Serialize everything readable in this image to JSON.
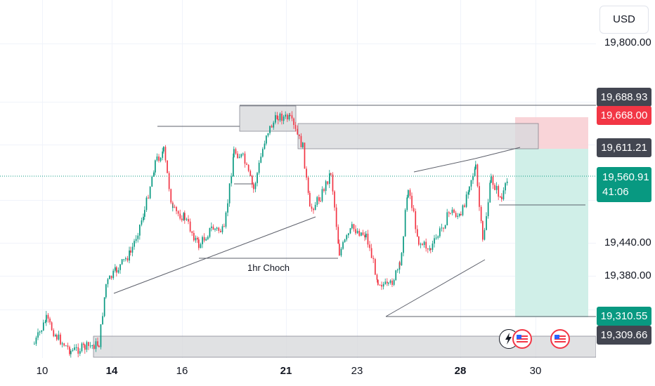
{
  "chart_data": {
    "type": "candlestick",
    "currency_button": "USD",
    "y_ticks": [
      "19,800.00",
      "19,440.00",
      "19,380.00"
    ],
    "x_ticks": [
      {
        "label": "10",
        "bold": false
      },
      {
        "label": "14",
        "bold": true
      },
      {
        "label": "16",
        "bold": false
      },
      {
        "label": "21",
        "bold": true
      },
      {
        "label": "23",
        "bold": false
      },
      {
        "label": "28",
        "bold": true
      },
      {
        "label": "30",
        "bold": false
      }
    ],
    "price_tags": [
      {
        "label": "19,688.93",
        "color": "#434651"
      },
      {
        "label": "19,668.00",
        "color": "#f23645"
      },
      {
        "label": "19,611.21",
        "color": "#434651"
      },
      {
        "label": "19,560.91",
        "sublabel": "41:06",
        "color": "#089981"
      },
      {
        "label": "19,310.55",
        "color": "#089981"
      },
      {
        "label": "19,309.66",
        "color": "#434651"
      }
    ],
    "annotation": "1hr Choch",
    "colors": {
      "up": "#089981",
      "down": "#f23645"
    },
    "last_price": 19560.91,
    "position_tool": {
      "stop": 19668.0,
      "entry": 19611.21,
      "target": 19310.55
    },
    "icons": [
      "lightning-icon",
      "us-flag-icon",
      "us-flag-icon"
    ]
  }
}
